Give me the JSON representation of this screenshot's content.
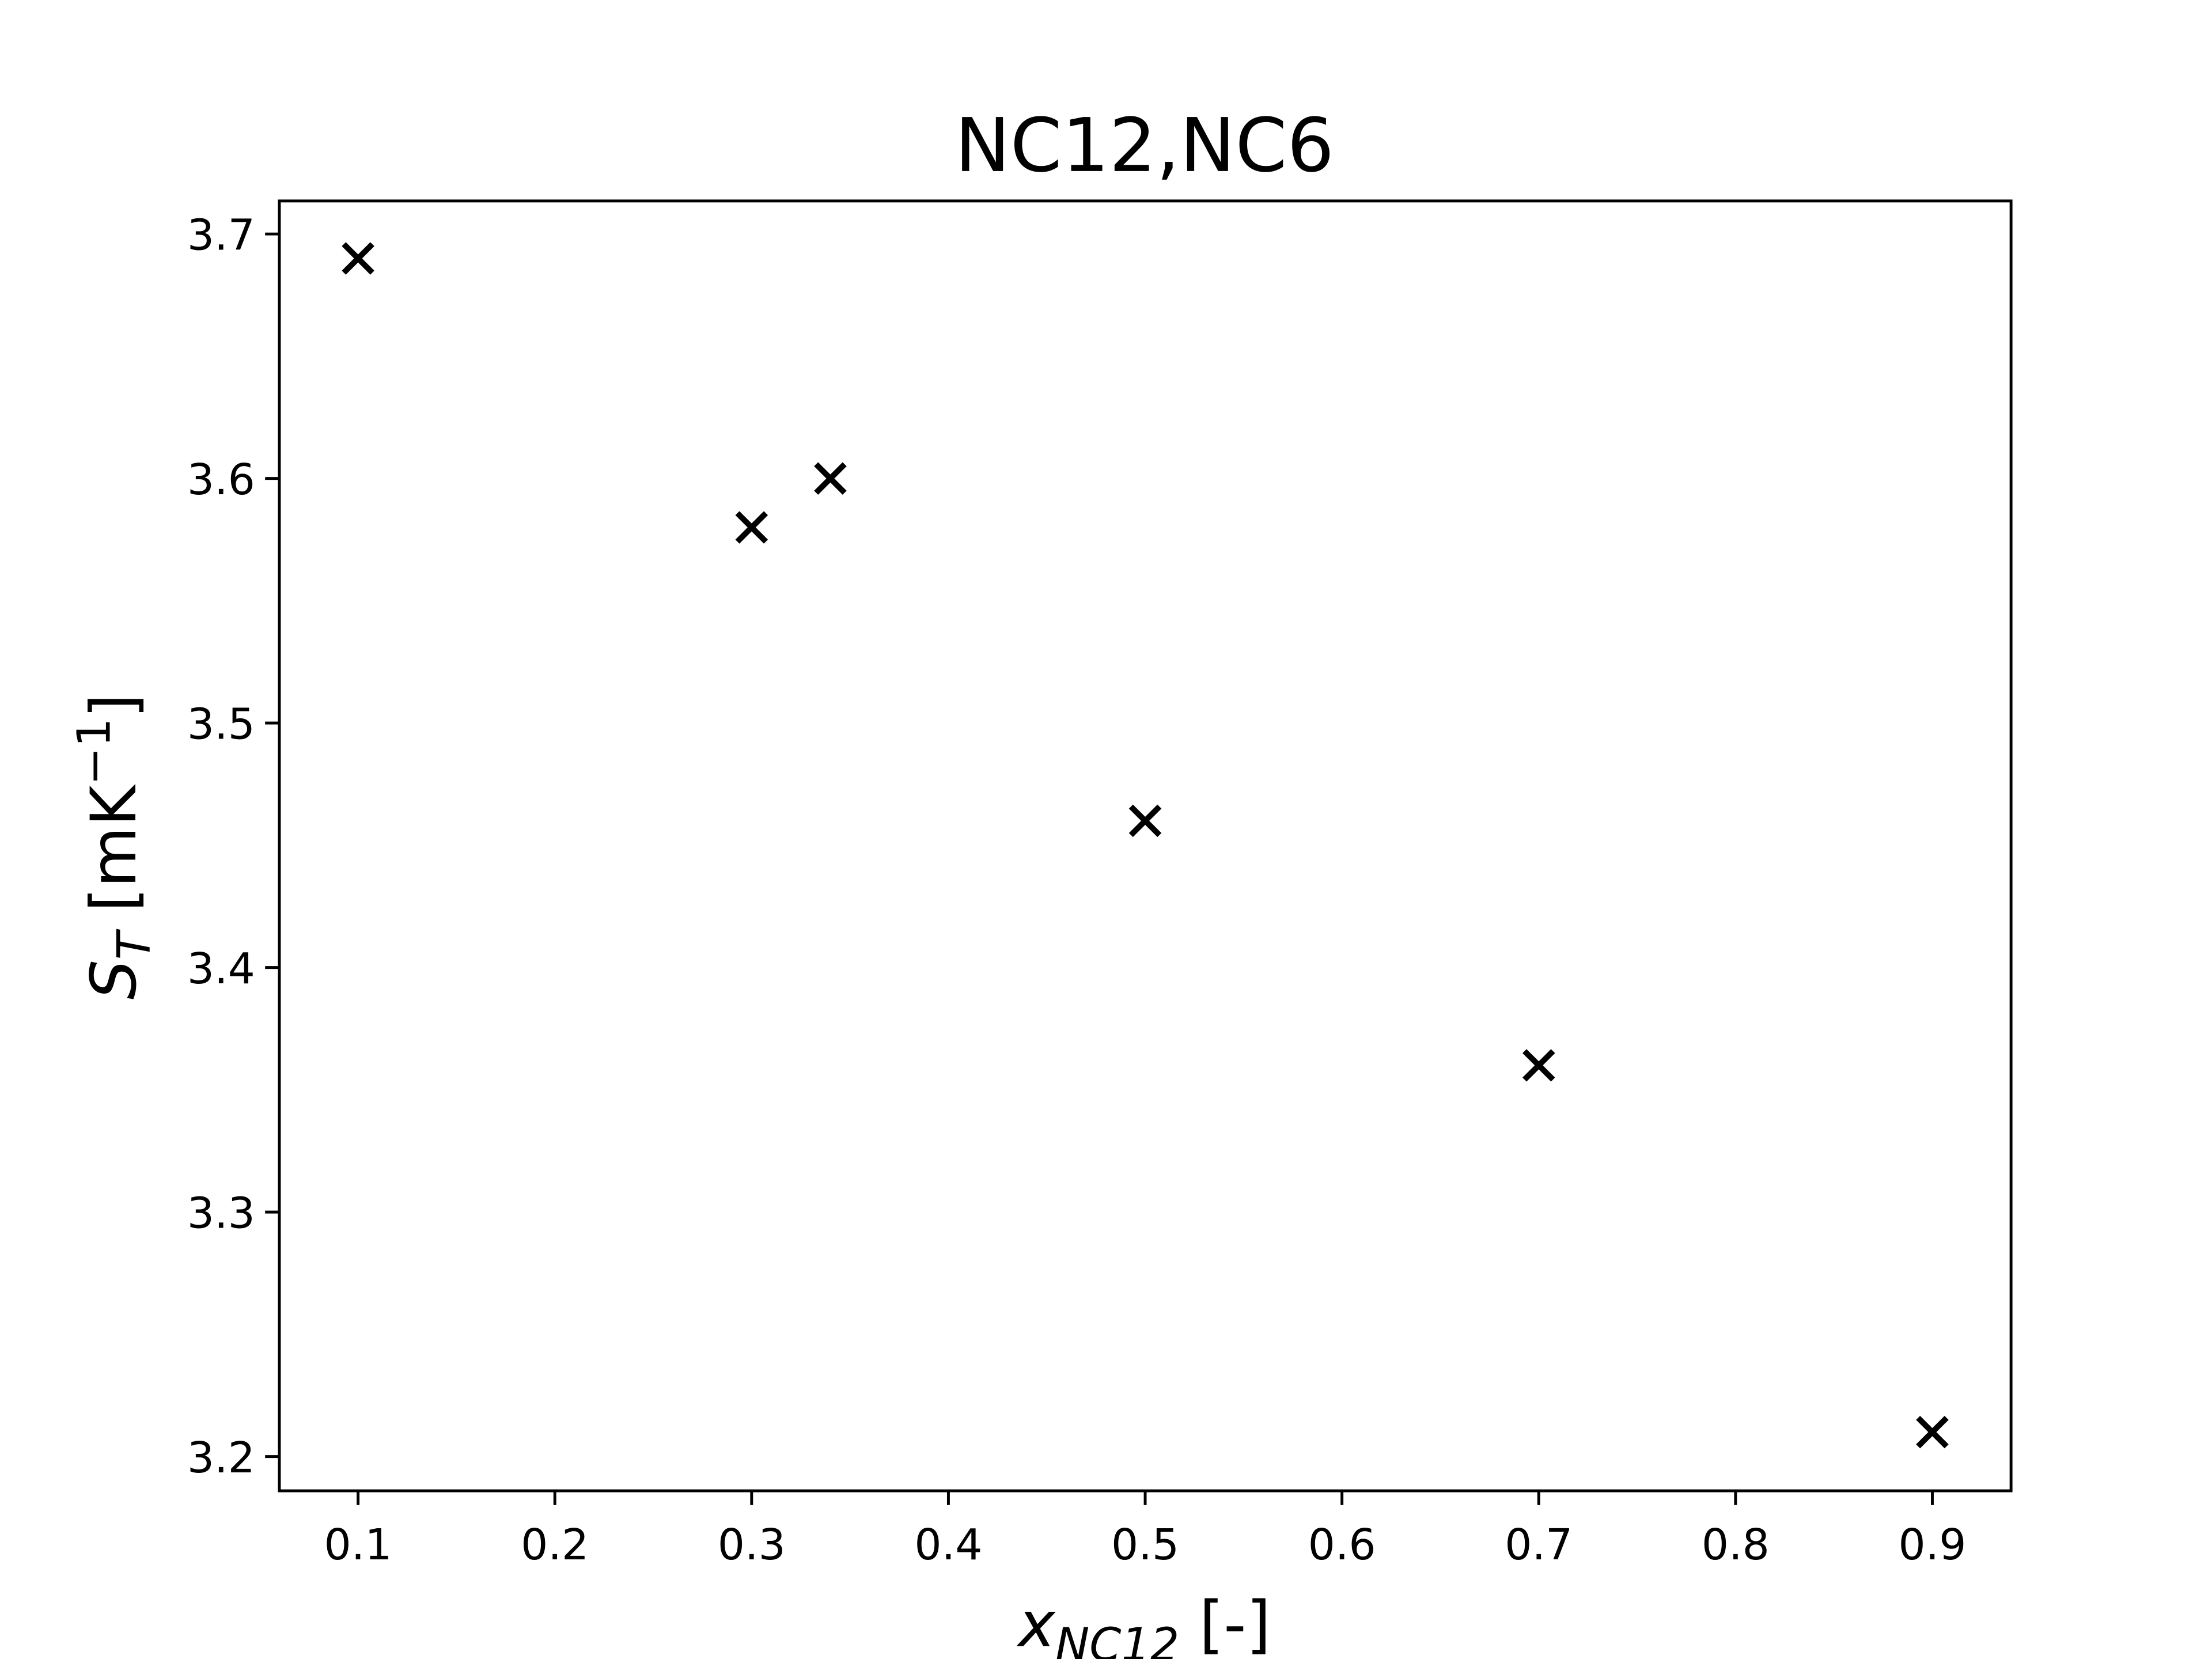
{
  "chart_data": {
    "type": "scatter",
    "title": "NC12,NC6",
    "x_label": {
      "symbol": "x",
      "subscript": "NC12",
      "unit": "[-]"
    },
    "y_label": {
      "symbol": "S",
      "subscript": "T",
      "unit": "[mK",
      "exponent": "−1",
      "close": "]"
    },
    "x": [
      0.1,
      0.3,
      0.34,
      0.5,
      0.7,
      0.9
    ],
    "series": [
      {
        "values": [
          3.69,
          3.58,
          3.6,
          3.46,
          3.36,
          3.21
        ],
        "color": "#000000",
        "marker": "x"
      }
    ],
    "xlim": [
      0.06,
      0.94
    ],
    "ylim": [
      3.186,
      3.7135
    ],
    "xticks": [
      0.1,
      0.2,
      0.3,
      0.4,
      0.5,
      0.6,
      0.7,
      0.8,
      0.9
    ],
    "yticks": [
      3.2,
      3.3,
      3.4,
      3.5,
      3.6,
      3.7
    ],
    "grid": false
  }
}
